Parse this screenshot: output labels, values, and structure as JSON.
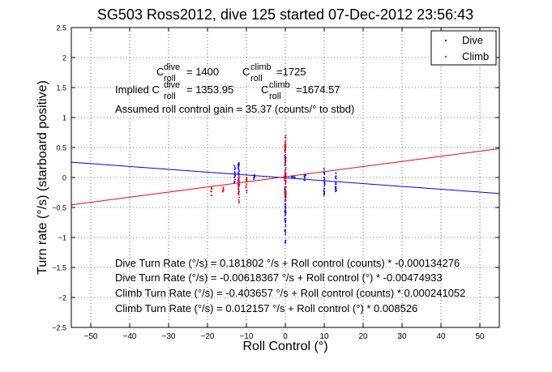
{
  "chart_data": {
    "type": "scatter",
    "title": "SG503 Ross2012, dive 125 started 07-Dec-2012 23:56:43",
    "xlabel": "Roll Control (°)",
    "ylabel": "Turn rate (°/s) (starboard positive)",
    "xlim": [
      -55,
      55
    ],
    "ylim": [
      -2.5,
      2.5
    ],
    "xticks": [
      -50,
      -40,
      -30,
      -20,
      -10,
      0,
      10,
      20,
      30,
      40,
      50
    ],
    "yticks": [
      -2.5,
      -2,
      -1.5,
      -1,
      -0.5,
      0,
      0.5,
      1,
      1.5,
      2,
      2.5
    ],
    "grid": true,
    "legend_position": "top-right",
    "series": [
      {
        "name": "Dive",
        "color": "#0000ff",
        "marker": "dot",
        "fit_line": {
          "slope": -0.00474933,
          "intercept": -0.00618367
        },
        "clusters": [
          {
            "x": 0,
            "y_min": -1.1,
            "y_max": 0.55,
            "spread": 0.3
          },
          {
            "x": -12,
            "y_min": -0.25,
            "y_max": 0.25,
            "spread": 0.3
          },
          {
            "x": -13,
            "y_min": -0.1,
            "y_max": 0.2,
            "spread": 0.3
          },
          {
            "x": -8,
            "y_min": -0.05,
            "y_max": 0.05,
            "spread": 0.3
          },
          {
            "x": 10,
            "y_min": -0.3,
            "y_max": 0.15,
            "spread": 0.2
          },
          {
            "x": 13,
            "y_min": -0.25,
            "y_max": 0.1,
            "spread": 0.2
          },
          {
            "x": 5,
            "y_min": -0.05,
            "y_max": 0.05,
            "spread": 1.0
          },
          {
            "x": 2,
            "y_min": -0.02,
            "y_max": 0.03,
            "spread": 1.0
          }
        ]
      },
      {
        "name": "Climb",
        "color": "#ff0000",
        "marker": "dot",
        "fit_line": {
          "slope": 0.008526,
          "intercept": 0.012157
        },
        "clusters": [
          {
            "x": 0,
            "y_min": -0.4,
            "y_max": 0.7,
            "spread": 0.4
          },
          {
            "x": -10,
            "y_min": -0.25,
            "y_max": 0.05,
            "spread": 0.3
          },
          {
            "x": -12,
            "y_min": -0.45,
            "y_max": 0.05,
            "spread": 0.3
          },
          {
            "x": -16,
            "y_min": -0.25,
            "y_max": -0.1,
            "spread": 0.3
          },
          {
            "x": -19,
            "y_min": -0.3,
            "y_max": -0.15,
            "spread": 0.3
          }
        ]
      }
    ],
    "annotations": {
      "c_roll_dive": "C",
      "c_roll_dive_sup": "dive",
      "c_roll_dive_sub": "roll",
      "c_roll_dive_val": "= 1400",
      "c_roll_climb": "C",
      "c_roll_climb_sup": "climb",
      "c_roll_climb_sub": "roll",
      "c_roll_climb_val": "=1725",
      "implied_prefix": "Implied C",
      "implied_dive_sup": "dive",
      "implied_dive_sub": "roll",
      "implied_dive_val": "= 1353.95",
      "implied_climb_c": "C",
      "implied_climb_sup": "climb",
      "implied_climb_sub": "roll",
      "implied_climb_val": "=1674.57",
      "gain": "Assumed roll control gain = 35.37 (counts/° to stbd)",
      "fits": [
        "Dive Turn Rate (°/s) = 0.181802 °/s + Roll control (counts) * -0.000134276",
        "Dive Turn Rate (°/s) = -0.00618367 °/s + Roll control (°) * -0.00474933",
        "Climb Turn Rate (°/s) = -0.403657 °/s + Roll control (counts) * 0.000241052",
        "Climb Turn Rate (°/s) = 0.012157 °/s + Roll control (°) * 0.008526"
      ]
    }
  }
}
